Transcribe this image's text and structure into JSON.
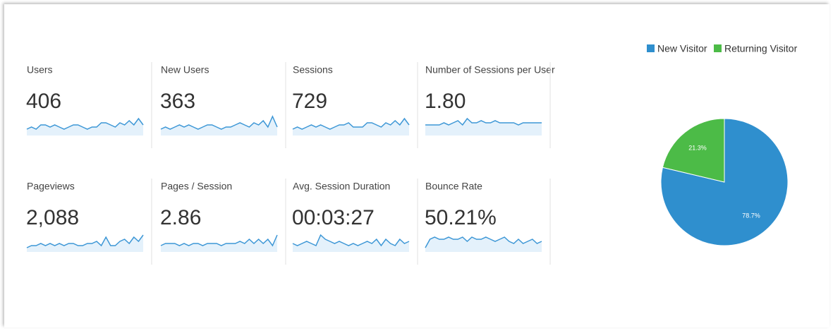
{
  "metrics": [
    {
      "label": "Users",
      "value": "406",
      "sparkline": [
        3,
        4,
        3,
        5,
        5,
        4,
        5,
        4,
        3,
        4,
        5,
        5,
        4,
        3,
        4,
        4,
        6,
        6,
        5,
        4,
        6,
        5,
        7,
        5,
        8,
        5
      ]
    },
    {
      "label": "New Users",
      "value": "363",
      "sparkline": [
        3,
        4,
        3,
        4,
        5,
        4,
        5,
        4,
        3,
        4,
        5,
        5,
        4,
        3,
        4,
        4,
        5,
        6,
        5,
        4,
        6,
        5,
        7,
        4,
        9,
        4
      ]
    },
    {
      "label": "Sessions",
      "value": "729",
      "sparkline": [
        3,
        4,
        3,
        4,
        5,
        4,
        5,
        4,
        3,
        4,
        5,
        5,
        6,
        4,
        4,
        4,
        6,
        6,
        5,
        4,
        6,
        5,
        7,
        5,
        8,
        5
      ]
    },
    {
      "label": "Number of Sessions per User",
      "value": "1.80",
      "sparkline": [
        5,
        5,
        5,
        5,
        6,
        5,
        6,
        7,
        5,
        8,
        6,
        6,
        7,
        6,
        6,
        7,
        6,
        6,
        6,
        6,
        5,
        6,
        6,
        6,
        6,
        6
      ]
    },
    {
      "label": "Pageviews",
      "value": "2,088",
      "sparkline": [
        2,
        3,
        3,
        4,
        3,
        4,
        3,
        4,
        3,
        4,
        4,
        3,
        3,
        4,
        4,
        5,
        3,
        7,
        3,
        3,
        5,
        6,
        4,
        7,
        5,
        8
      ]
    },
    {
      "label": "Pages / Session",
      "value": "2.86",
      "sparkline": [
        3,
        4,
        4,
        4,
        3,
        4,
        3,
        4,
        4,
        3,
        4,
        4,
        4,
        3,
        4,
        4,
        4,
        5,
        4,
        6,
        4,
        6,
        4,
        6,
        3,
        8
      ]
    },
    {
      "label": "Avg. Session Duration",
      "value": "00:03:27",
      "sparkline": [
        4,
        3,
        4,
        5,
        4,
        3,
        8,
        6,
        5,
        4,
        5,
        4,
        3,
        4,
        3,
        4,
        5,
        4,
        6,
        3,
        6,
        4,
        3,
        6,
        4,
        5
      ]
    },
    {
      "label": "Bounce Rate",
      "value": "50.21%",
      "sparkline": [
        2,
        6,
        7,
        6,
        6,
        7,
        6,
        6,
        7,
        5,
        7,
        6,
        6,
        7,
        6,
        5,
        6,
        7,
        5,
        4,
        6,
        4,
        5,
        6,
        4,
        5
      ]
    }
  ],
  "sparkline_ylim": [
    0,
    10
  ],
  "chart_data": {
    "type": "pie",
    "categories": [
      "New Visitor",
      "Returning Visitor"
    ],
    "values": [
      78.7,
      21.3
    ],
    "value_labels": [
      "78.7%",
      "21.3%"
    ],
    "colors": [
      "#2f8fce",
      "#4cbb47"
    ],
    "legend": "top"
  }
}
